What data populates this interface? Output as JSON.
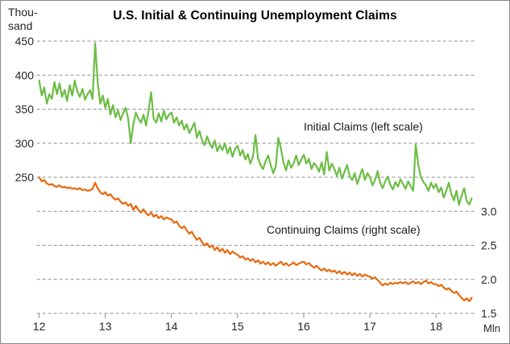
{
  "chart_data": {
    "type": "line",
    "title": "U.S. Initial & Continuing Unemployment Claims",
    "grid": {
      "style": "dashed",
      "color": "#8f8f8f",
      "rows": 9
    },
    "left_axis": {
      "unit_line1": "Thou-",
      "unit_line2": "sand",
      "ticks": [
        "450",
        "400",
        "350",
        "300",
        "250"
      ],
      "top_value": 450,
      "step_per_gridline": 50
    },
    "right_axis": {
      "unit": "Mln",
      "ticks": [
        "3.0",
        "2.5",
        "2.0",
        "1.5"
      ],
      "bottom_value": 1.5,
      "step_per_gridline": 0.5
    },
    "x_axis": {
      "ticks": [
        "12",
        "13",
        "14",
        "15",
        "16",
        "17",
        "18"
      ]
    },
    "series": [
      {
        "key": "initial-claims-line",
        "name": "Initial Claims (left scale)",
        "axis": "left",
        "unit": "thousand",
        "color": "#6cbd45",
        "x_start": 12,
        "x_end": 18.54,
        "sampling": "approx. biweekly, 2012 to mid-2018",
        "values": [
          392,
          370,
          382,
          358,
          372,
          365,
          390,
          372,
          388,
          368,
          378,
          362,
          385,
          370,
          392,
          376,
          368,
          380,
          364,
          372,
          378,
          365,
          447,
          390,
          358,
          370,
          352,
          365,
          342,
          356,
          338,
          348,
          334,
          344,
          352,
          336,
          300,
          328,
          345,
          336,
          330,
          342,
          326,
          348,
          375,
          336,
          330,
          344,
          332,
          348,
          335,
          342,
          345,
          330,
          338,
          326,
          333,
          320,
          328,
          315,
          322,
          330,
          308,
          318,
          305,
          297,
          310,
          300,
          293,
          304,
          288,
          297,
          290,
          300,
          285,
          294,
          280,
          292,
          296,
          282,
          290,
          276,
          284,
          270,
          280,
          312,
          278,
          268,
          262,
          274,
          282,
          268,
          256,
          266,
          308,
          292,
          272,
          260,
          275,
          264,
          270,
          282,
          268,
          276,
          283,
          270,
          277,
          262,
          271,
          266,
          258,
          272,
          254,
          287,
          260,
          270,
          262,
          252,
          264,
          248,
          258,
          268,
          252,
          246,
          256,
          240,
          252,
          262,
          246,
          256,
          250,
          238,
          246,
          259,
          242,
          234,
          244,
          251,
          239,
          232,
          243,
          236,
          247,
          240,
          233,
          244,
          237,
          230,
          298,
          268,
          250,
          243,
          238,
          230,
          242,
          234,
          240,
          228,
          235,
          220,
          230,
          242,
          225,
          216,
          230,
          209,
          223,
          234,
          215,
          210,
          219
        ]
      },
      {
        "key": "continuing-claims-line",
        "name": "Continuing Claims (right scale)",
        "axis": "right",
        "unit": "million",
        "color": "#e8690e",
        "x_start": 12,
        "x_end": 18.54,
        "sampling": "approx. biweekly, 2012 to mid-2018",
        "values": [
          3.5,
          3.44,
          3.46,
          3.41,
          3.39,
          3.4,
          3.37,
          3.36,
          3.38,
          3.35,
          3.36,
          3.34,
          3.35,
          3.33,
          3.34,
          3.32,
          3.34,
          3.31,
          3.32,
          3.3,
          3.31,
          3.33,
          3.42,
          3.34,
          3.28,
          3.25,
          3.28,
          3.23,
          3.25,
          3.2,
          3.17,
          3.19,
          3.14,
          3.11,
          3.13,
          3.08,
          3.11,
          3.02,
          3.08,
          3.02,
          2.98,
          3.03,
          2.97,
          2.94,
          2.98,
          2.92,
          2.95,
          2.9,
          2.93,
          2.88,
          2.91,
          2.89,
          2.88,
          2.83,
          2.85,
          2.79,
          2.75,
          2.78,
          2.72,
          2.67,
          2.7,
          2.63,
          2.58,
          2.61,
          2.55,
          2.5,
          2.53,
          2.47,
          2.5,
          2.43,
          2.47,
          2.41,
          2.45,
          2.39,
          2.43,
          2.37,
          2.41,
          2.38,
          2.36,
          2.32,
          2.34,
          2.29,
          2.31,
          2.27,
          2.3,
          2.25,
          2.28,
          2.23,
          2.26,
          2.22,
          2.25,
          2.21,
          2.24,
          2.2,
          2.23,
          2.26,
          2.21,
          2.24,
          2.2,
          2.22,
          2.25,
          2.21,
          2.23,
          2.25,
          2.26,
          2.22,
          2.24,
          2.2,
          2.17,
          2.2,
          2.16,
          2.13,
          2.16,
          2.12,
          2.14,
          2.11,
          2.13,
          2.09,
          2.12,
          2.08,
          2.11,
          2.07,
          2.1,
          2.06,
          2.09,
          2.05,
          2.08,
          2.04,
          2.07,
          2.05,
          2.04,
          2.01,
          2.03,
          1.99,
          1.95,
          1.91,
          1.94,
          1.92,
          1.95,
          1.93,
          1.95,
          1.94,
          1.96,
          1.94,
          1.96,
          1.93,
          1.95,
          1.97,
          1.94,
          1.96,
          1.93,
          1.96,
          1.98,
          1.94,
          1.96,
          1.93,
          1.93,
          1.9,
          1.92,
          1.88,
          1.85,
          1.87,
          1.83,
          1.8,
          1.82,
          1.77,
          1.73,
          1.69,
          1.72,
          1.68,
          1.73
        ]
      }
    ]
  }
}
